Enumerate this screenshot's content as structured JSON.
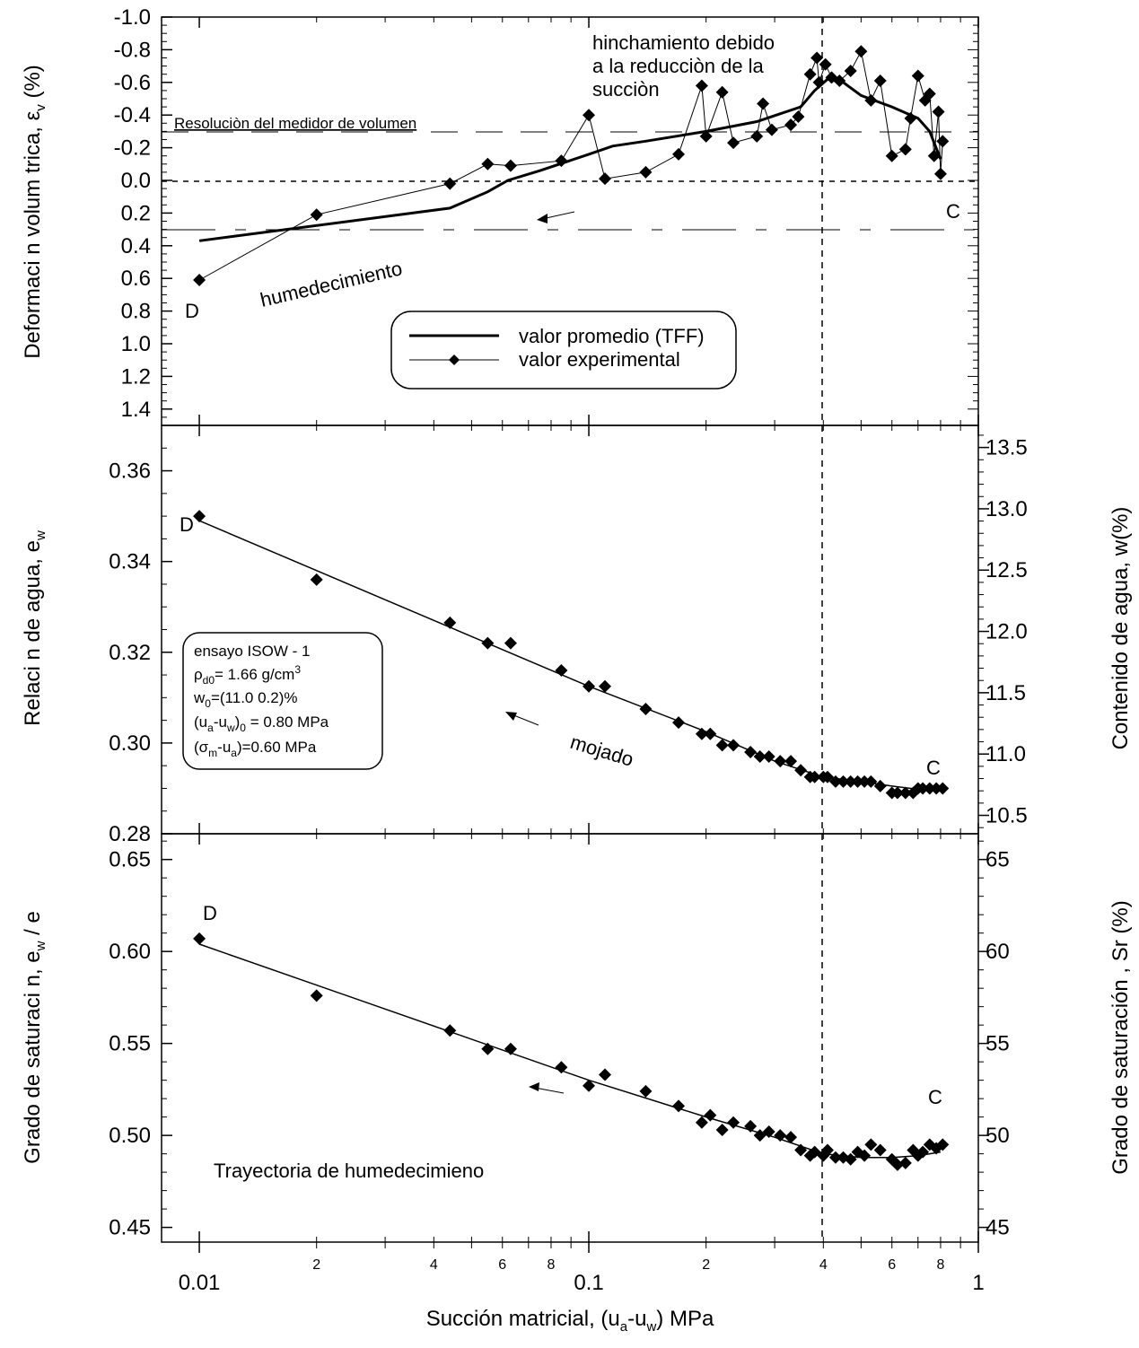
{
  "chart_data": [
    {
      "type": "line",
      "panel": "top",
      "xscale": "log",
      "xlim": [
        0.008,
        1.0
      ],
      "ylim": [
        1.5,
        -1.0
      ],
      "ylabel": "Deformaci n volum trica, εv (%)",
      "yticks": [
        "-1.0",
        "-0.8",
        "-0.6",
        "-0.4",
        "-0.2",
        "0.0",
        "0.2",
        "0.4",
        "0.6",
        "0.8",
        "1.0",
        "1.2",
        "1.4"
      ],
      "legend": {
        "placement": "lower-center",
        "entries": [
          "valor promedio (TFF)",
          "valor experimental"
        ]
      },
      "series": [
        {
          "name": "valor promedio (TFF)",
          "x": [
            0.01,
            0.044,
            0.055,
            0.062,
            0.075,
            0.1,
            0.115,
            0.14,
            0.2,
            0.27,
            0.35,
            0.38,
            0.41,
            0.45,
            0.5,
            0.6,
            0.7,
            0.75,
            0.8
          ],
          "y": [
            0.37,
            0.17,
            0.07,
            0.0,
            -0.06,
            -0.16,
            -0.21,
            -0.24,
            -0.3,
            -0.36,
            -0.45,
            -0.55,
            -0.62,
            -0.6,
            -0.52,
            -0.45,
            -0.38,
            -0.3,
            -0.13
          ]
        },
        {
          "name": "valor experimental",
          "x": [
            0.01,
            0.02,
            0.044,
            0.055,
            0.063,
            0.085,
            0.1,
            0.11,
            0.14,
            0.17,
            0.195,
            0.2,
            0.22,
            0.235,
            0.27,
            0.28,
            0.295,
            0.33,
            0.345,
            0.37,
            0.385,
            0.39,
            0.405,
            0.42,
            0.44,
            0.47,
            0.5,
            0.53,
            0.56,
            0.6,
            0.65,
            0.67,
            0.7,
            0.73,
            0.75,
            0.77,
            0.79,
            0.8,
            0.81
          ],
          "y": [
            0.61,
            0.21,
            0.02,
            -0.1,
            -0.09,
            -0.12,
            -0.4,
            -0.01,
            -0.05,
            -0.16,
            -0.58,
            -0.27,
            -0.54,
            -0.23,
            -0.27,
            -0.47,
            -0.31,
            -0.34,
            -0.39,
            -0.65,
            -0.75,
            -0.6,
            -0.71,
            -0.63,
            -0.61,
            -0.67,
            -0.79,
            -0.49,
            -0.61,
            -0.15,
            -0.19,
            -0.38,
            -0.64,
            -0.49,
            -0.53,
            -0.15,
            -0.42,
            -0.04,
            -0.24
          ]
        }
      ],
      "annotations": [
        "hinchamiento debido",
        "a la reducciòn de la",
        "succiòn",
        "Resoluciòn del medidor de volumen",
        "humedecimiento",
        "D",
        "C"
      ]
    },
    {
      "type": "line",
      "panel": "middle",
      "xscale": "log",
      "xlim": [
        0.008,
        1.0
      ],
      "ylim": [
        0.28,
        0.37
      ],
      "ylabel": "Relaci n de agua, ew",
      "y2label": "Contenido de agua, w(%)",
      "y2lim": [
        10.35,
        13.68
      ],
      "yticks": [
        "0.28",
        "0.30",
        "0.32",
        "0.34",
        "0.36"
      ],
      "y2ticks": [
        "10.5",
        "11.0",
        "11.5",
        "12.0",
        "12.5",
        "13.0",
        "13.5"
      ],
      "series": [
        {
          "name": "",
          "x": [
            0.01,
            0.02,
            0.044,
            0.055,
            0.063,
            0.085,
            0.1,
            0.11,
            0.14,
            0.17,
            0.195,
            0.205,
            0.22,
            0.235,
            0.26,
            0.275,
            0.29,
            0.31,
            0.33,
            0.35,
            0.37,
            0.38,
            0.4,
            0.41,
            0.43,
            0.45,
            0.47,
            0.49,
            0.51,
            0.53,
            0.56,
            0.6,
            0.62,
            0.65,
            0.68,
            0.7,
            0.72,
            0.75,
            0.78,
            0.81
          ],
          "y": [
            0.35,
            0.336,
            0.3265,
            0.322,
            0.322,
            0.316,
            0.3125,
            0.3125,
            0.3075,
            0.3045,
            0.302,
            0.302,
            0.2995,
            0.2995,
            0.298,
            0.297,
            0.297,
            0.296,
            0.296,
            0.294,
            0.2925,
            0.2925,
            0.2925,
            0.2925,
            0.2915,
            0.2915,
            0.2915,
            0.2915,
            0.2915,
            0.2915,
            0.2905,
            0.289,
            0.289,
            0.289,
            0.289,
            0.29,
            0.29,
            0.29,
            0.29,
            0.29
          ]
        },
        {
          "name": "",
          "x": [
            0.01,
            0.1,
            0.2,
            0.3,
            0.4,
            0.5,
            0.6,
            0.7,
            0.8
          ],
          "y": [
            0.349,
            0.3125,
            0.3025,
            0.296,
            0.2925,
            0.2915,
            0.2905,
            0.2898,
            0.2898
          ]
        }
      ],
      "inset": [
        "ensayo ISOW - 1",
        "ρd0= 1.66  g/cm3",
        "w0=(11.0  0.2)%",
        "(ua-uw)0 = 0.80 MPa",
        "(σm-ua)=0.60 MPa"
      ],
      "annotations": [
        "mojado",
        "D",
        "C"
      ]
    },
    {
      "type": "line",
      "panel": "bottom",
      "xscale": "log",
      "xlim": [
        0.008,
        1.0
      ],
      "ylim": [
        0.442,
        0.664
      ],
      "ylabel": "Grado de saturaci n, ew / e",
      "y2label": "Grado de saturación , Sr (%)",
      "yticks": [
        "0.45",
        "0.50",
        "0.55",
        "0.60",
        "0.65"
      ],
      "y2ticks": [
        "45",
        "50",
        "55",
        "60",
        "65"
      ],
      "xlabel": "Succión matricial,  (ua-uw)  MPa",
      "xticks": [
        "0.01",
        "0.1",
        "1"
      ],
      "xminorticks": [
        "2",
        "4",
        "6",
        "8",
        "2",
        "4",
        "6",
        "8"
      ],
      "series": [
        {
          "name": "",
          "x": [
            0.01,
            0.02,
            0.044,
            0.055,
            0.063,
            0.085,
            0.1,
            0.11,
            0.14,
            0.17,
            0.195,
            0.205,
            0.22,
            0.235,
            0.26,
            0.275,
            0.29,
            0.31,
            0.33,
            0.35,
            0.37,
            0.38,
            0.4,
            0.41,
            0.43,
            0.45,
            0.47,
            0.49,
            0.51,
            0.53,
            0.56,
            0.6,
            0.62,
            0.65,
            0.68,
            0.7,
            0.72,
            0.75,
            0.78,
            0.81
          ],
          "y": [
            0.607,
            0.576,
            0.557,
            0.547,
            0.547,
            0.537,
            0.527,
            0.533,
            0.524,
            0.516,
            0.507,
            0.511,
            0.503,
            0.507,
            0.505,
            0.5,
            0.502,
            0.5,
            0.499,
            0.492,
            0.489,
            0.491,
            0.489,
            0.492,
            0.488,
            0.488,
            0.487,
            0.491,
            0.489,
            0.495,
            0.492,
            0.487,
            0.484,
            0.485,
            0.492,
            0.489,
            0.491,
            0.495,
            0.493,
            0.495
          ]
        },
        {
          "name": "",
          "x": [
            0.01,
            0.1,
            0.2,
            0.3,
            0.4,
            0.5,
            0.6,
            0.7,
            0.8
          ],
          "y": [
            0.604,
            0.53,
            0.51,
            0.499,
            0.49,
            0.488,
            0.488,
            0.489,
            0.491
          ]
        }
      ],
      "annotations": [
        "Trayectoria de humedecimieno",
        "D",
        "C"
      ]
    }
  ]
}
